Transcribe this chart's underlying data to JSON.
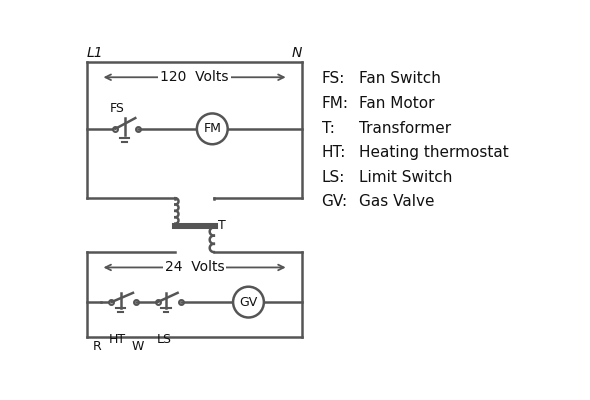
{
  "bg_color": "#ffffff",
  "line_color": "#555555",
  "text_color": "#111111",
  "legend": [
    [
      "FS:",
      "Fan Switch"
    ],
    [
      "FM:",
      "Fan Motor"
    ],
    [
      "T:",
      "Transformer"
    ],
    [
      "HT:",
      "Heating thermostat"
    ],
    [
      "LS:",
      "Limit Switch"
    ],
    [
      "GV:",
      "Gas Valve"
    ]
  ],
  "lw": 1.8
}
